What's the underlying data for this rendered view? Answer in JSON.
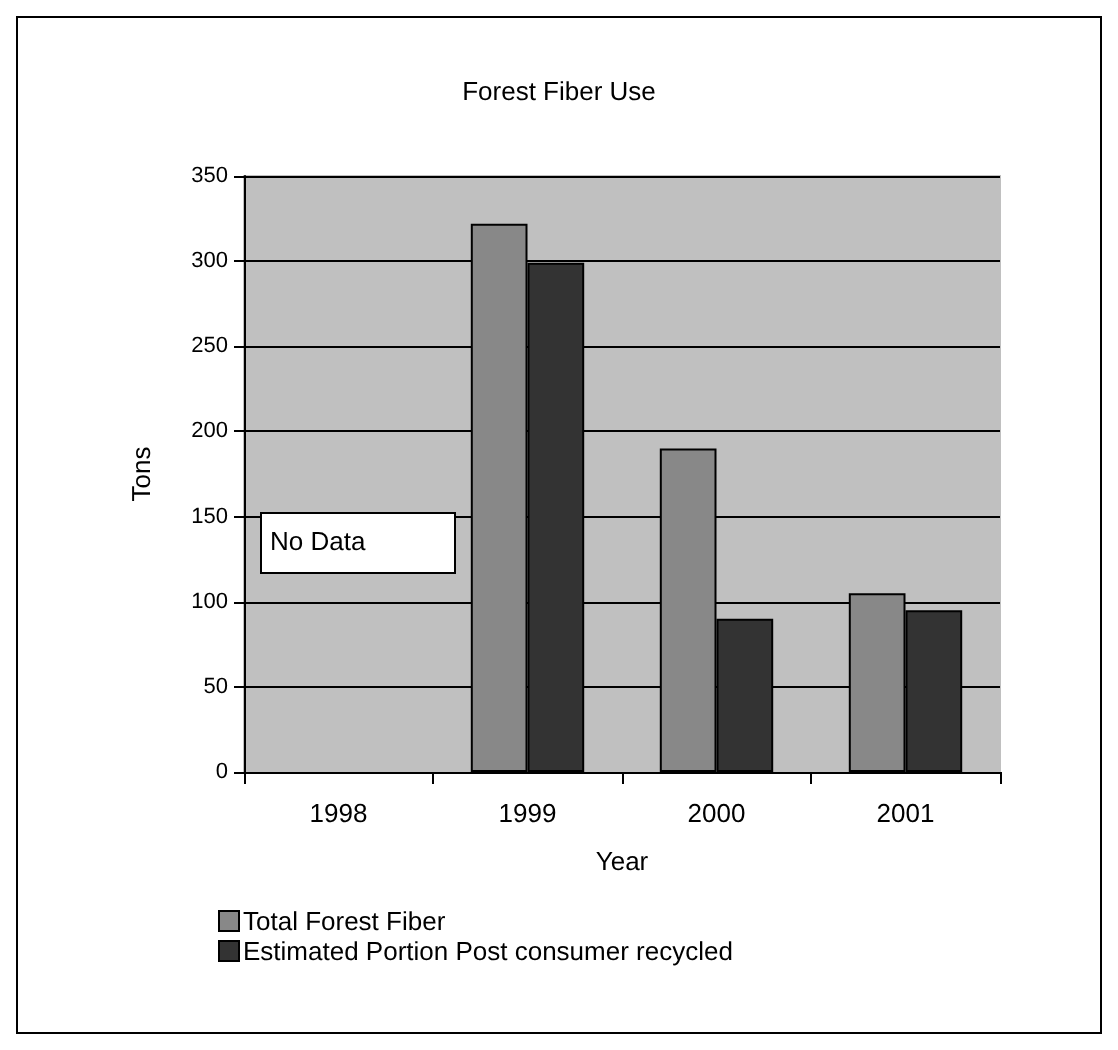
{
  "chart_data": {
    "type": "bar",
    "title": "Forest Fiber Use",
    "xlabel": "Year",
    "ylabel": "Tons",
    "categories": [
      "1998",
      "1999",
      "2000",
      "2001"
    ],
    "series": [
      {
        "name": "Total Forest Fiber",
        "color": "#888888",
        "values": [
          null,
          322,
          190,
          105
        ]
      },
      {
        "name": "Estimated Portion Post consumer recycled",
        "color": "#333333",
        "values": [
          null,
          299,
          90,
          95
        ]
      }
    ],
    "ylim": [
      0,
      350
    ],
    "yticks": [
      0,
      50,
      100,
      150,
      200,
      250,
      300,
      350
    ],
    "grid": "y",
    "legend": "bottom left",
    "annotations": [
      "No Data"
    ]
  }
}
